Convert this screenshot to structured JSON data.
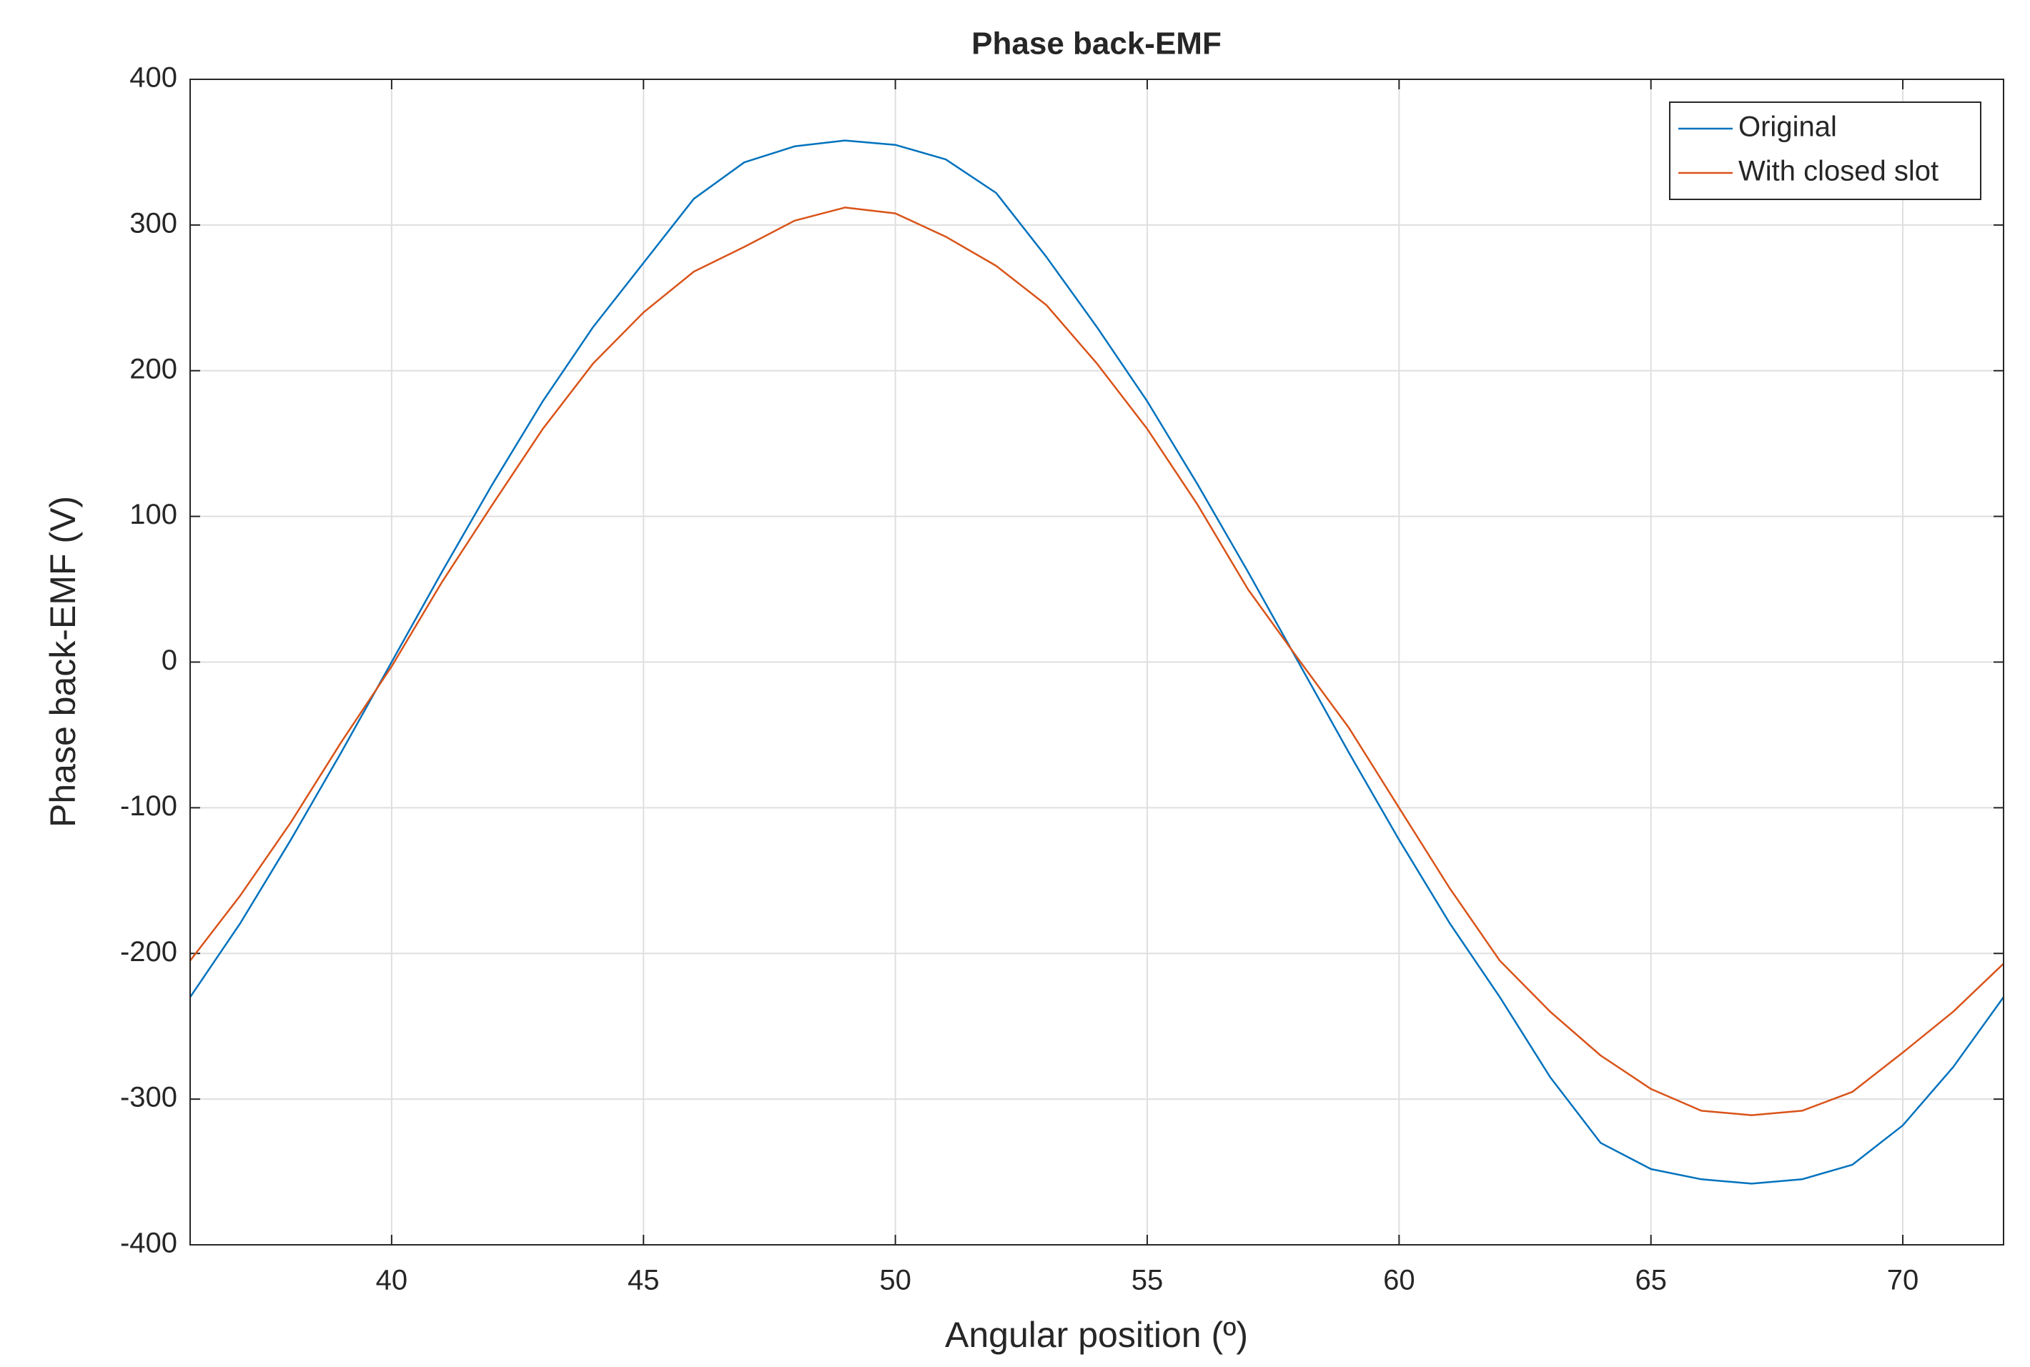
{
  "chart_data": {
    "type": "line",
    "title": "Phase back-EMF",
    "x_label": "Angular position (º)",
    "y_label": "Phase back-EMF (V)",
    "x": [
      36,
      37,
      38,
      39,
      40,
      41,
      42,
      43,
      44,
      45,
      46,
      47,
      48,
      49,
      50,
      51,
      52,
      53,
      54,
      55,
      56,
      57,
      58,
      59,
      60,
      61,
      62,
      63,
      64,
      65,
      66,
      67,
      68,
      69,
      70,
      71,
      72
    ],
    "series": [
      {
        "name": "Original",
        "color": "#0072bd",
        "values": [
          -230,
          -179,
          -122,
          -62,
          0,
          62,
          122,
          179,
          230,
          274,
          318,
          343,
          354,
          358,
          355,
          345,
          322,
          278,
          230,
          179,
          122,
          62,
          0,
          -62,
          -122,
          -179,
          -230,
          -285,
          -330,
          -348,
          -355,
          -358,
          -355,
          -345,
          -318,
          -278,
          -230
        ]
      },
      {
        "name": "With closed slot",
        "color": "#d95319",
        "values": [
          -205,
          -160,
          -110,
          -55,
          -3,
          55,
          108,
          160,
          205,
          240,
          268,
          285,
          303,
          312,
          308,
          292,
          272,
          245,
          205,
          160,
          108,
          50,
          2,
          -45,
          -100,
          -155,
          -205,
          -240,
          -270,
          -293,
          -308,
          -311,
          -308,
          -295,
          -268,
          -240,
          -207
        ]
      }
    ],
    "xlim": [
      36,
      72
    ],
    "xticks": [
      40,
      45,
      50,
      55,
      60,
      65,
      70
    ],
    "ylim": [
      -400,
      400
    ],
    "yticks": [
      -400,
      -300,
      -200,
      -100,
      0,
      100,
      200,
      300,
      400
    ],
    "grid": true,
    "legend": "northeast"
  }
}
